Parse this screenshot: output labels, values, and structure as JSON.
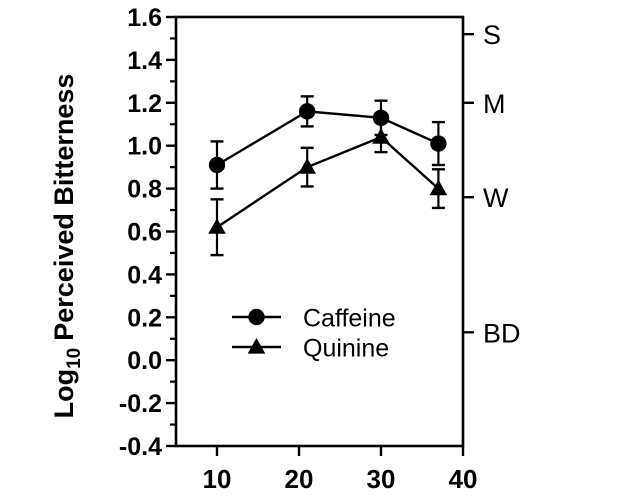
{
  "figure": {
    "background": "#ffffff",
    "ink": "#000000"
  },
  "chart_data": {
    "type": "line",
    "title": "",
    "xlabel": "",
    "ylabel": {
      "base": "Log",
      "subscript": "10",
      "rest": "Perceived Bitterness"
    },
    "xlim": [
      5,
      40
    ],
    "ylim": [
      -0.4,
      1.6
    ],
    "grid": false,
    "x_ticks": [
      {
        "value": 10,
        "label": "10"
      },
      {
        "value": 20,
        "label": "20"
      },
      {
        "value": 30,
        "label": "30"
      },
      {
        "value": 40,
        "label": "40"
      }
    ],
    "y_ticks": [
      {
        "value": 1.6,
        "label": "1.6"
      },
      {
        "value": 1.4,
        "label": "1.4"
      },
      {
        "value": 1.2,
        "label": "1.2"
      },
      {
        "value": 1.0,
        "label": "1.0"
      },
      {
        "value": 0.8,
        "label": "0.8"
      },
      {
        "value": 0.6,
        "label": "0.6"
      },
      {
        "value": 0.4,
        "label": "0.4"
      },
      {
        "value": 0.2,
        "label": "0.2"
      },
      {
        "value": 0.0,
        "label": "0.0"
      },
      {
        "value": -0.2,
        "label": "-0.2"
      },
      {
        "value": -0.4,
        "label": "-0.4"
      }
    ],
    "y_minor_ticks": [
      1.5,
      1.3,
      1.1,
      0.9,
      0.7,
      0.5,
      0.3,
      0.1,
      -0.1,
      -0.3
    ],
    "right_axis_ticks": [
      {
        "value": 1.52,
        "label": "S"
      },
      {
        "value": 1.2,
        "label": "M"
      },
      {
        "value": 0.76,
        "label": "W"
      },
      {
        "value": 0.13,
        "label": "BD"
      }
    ],
    "x": [
      10,
      21,
      30,
      37
    ],
    "series": [
      {
        "name": "Caffeine",
        "marker": "circle",
        "values": [
          0.91,
          1.16,
          1.13,
          1.01
        ],
        "errors": [
          0.11,
          0.07,
          0.08,
          0.1
        ]
      },
      {
        "name": "Quinine",
        "marker": "triangle",
        "values": [
          0.62,
          0.9,
          1.04,
          0.8
        ],
        "errors": [
          0.13,
          0.09,
          0.07,
          0.09
        ]
      }
    ],
    "legend": {
      "position": "inside-bottom-left",
      "items": [
        "Caffeine",
        "Quinine"
      ]
    }
  }
}
